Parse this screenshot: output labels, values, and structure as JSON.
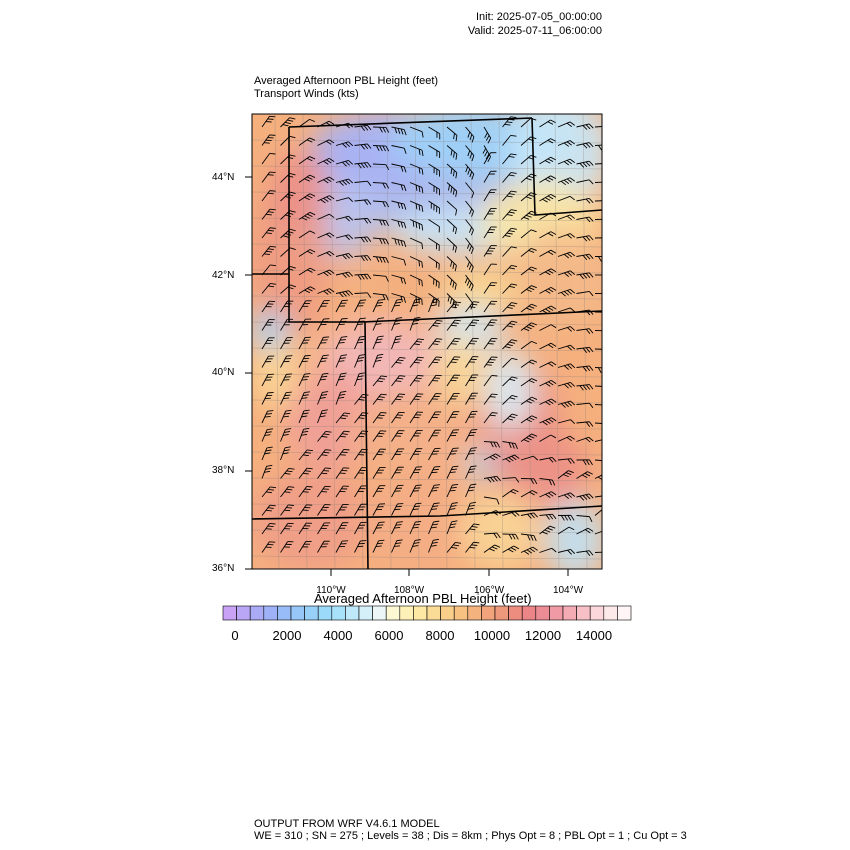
{
  "header": {
    "init": "Init: 2025-07-05_00:00:00",
    "valid": "Valid: 2025-07-11_06:00:00"
  },
  "plot": {
    "title": "Averaged Afternoon PBL Height   (feet)",
    "subtitle": "Transport Winds   (kts)",
    "lat_labels": [
      "44°N",
      "42°N",
      "40°N",
      "38°N",
      "36°N"
    ],
    "lon_labels": [
      "110°W",
      "108°W",
      "106°W",
      "104°W"
    ]
  },
  "colorbar": {
    "title": "Averaged Afternoon PBL Height  (feet)",
    "tick_labels": [
      "0",
      "2000",
      "4000",
      "6000",
      "8000",
      "10000",
      "12000",
      "14000"
    ],
    "min": 0,
    "max": 15000,
    "step": 500,
    "colors": [
      "#c9a2f5",
      "#b9a6f5",
      "#abaaf5",
      "#9fb2f7",
      "#98bcf8",
      "#97c6f8",
      "#98d0f8",
      "#9bdaf9",
      "#a8e2fa",
      "#bfe9fa",
      "#d6f0f9",
      "#ecf6f7",
      "#fdf8d4",
      "#fdf1b8",
      "#fde8a4",
      "#fbdc96",
      "#f9cf8a",
      "#f7c182",
      "#f4b27e",
      "#f1a47c",
      "#ee987c",
      "#ec8d80",
      "#eb8588",
      "#ec8c94",
      "#ef9aa4",
      "#f3acb4",
      "#f7c0c6",
      "#fbd6da",
      "#fde8ea",
      "#fff5f6"
    ]
  },
  "footer": {
    "line1": "OUTPUT FROM WRF V4.6.1 MODEL",
    "line2": "WE = 310 ; SN = 275 ; Levels = 38 ; Dis = 8km ; Phys Opt = 8 ; PBL Opt = 1 ; Cu Opt = 3"
  }
}
